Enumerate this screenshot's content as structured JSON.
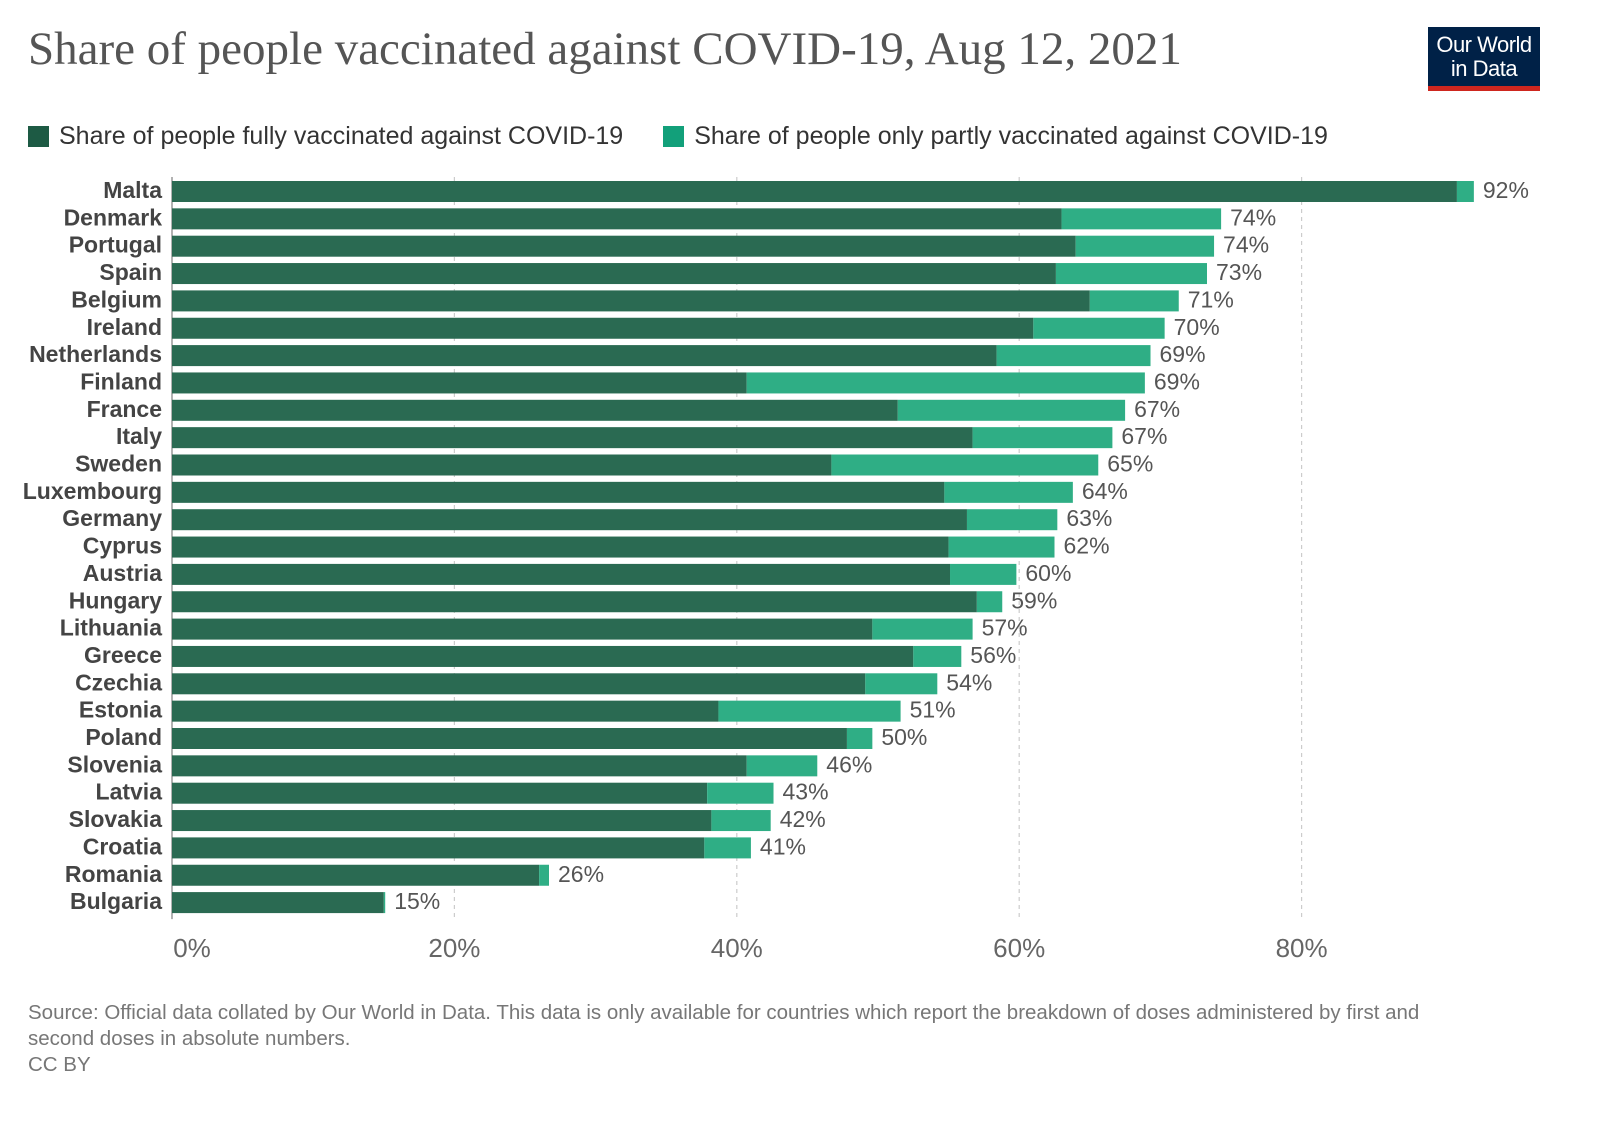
{
  "title": "Share of people vaccinated against COVID-19, Aug 12, 2021",
  "logo": {
    "line1": "Our World",
    "line2": "in Data"
  },
  "colors": {
    "fully": "#2a6a52",
    "partly": "#2fae85",
    "grid": "#cccccc",
    "label": "#444444",
    "value": "#555555",
    "tick": "#666666"
  },
  "chart_data": {
    "type": "bar",
    "orientation": "horizontal",
    "stacked": true,
    "title": "Share of people vaccinated against COVID-19, Aug 12, 2021",
    "categories": [
      "Malta",
      "Denmark",
      "Portugal",
      "Spain",
      "Belgium",
      "Ireland",
      "Netherlands",
      "Finland",
      "France",
      "Italy",
      "Sweden",
      "Luxembourg",
      "Germany",
      "Cyprus",
      "Austria",
      "Hungary",
      "Lithuania",
      "Greece",
      "Czechia",
      "Estonia",
      "Poland",
      "Slovenia",
      "Latvia",
      "Slovakia",
      "Croatia",
      "Romania",
      "Bulgaria"
    ],
    "series": [
      {
        "name": "Share of people fully vaccinated against COVID-19",
        "values": [
          91,
          63,
          64,
          62.6,
          65,
          61,
          58.4,
          40.7,
          51.4,
          56.7,
          46.7,
          54.7,
          56.3,
          55,
          55.1,
          57,
          49.6,
          52.5,
          49.1,
          38.7,
          47.8,
          40.7,
          37.9,
          38.2,
          37.7,
          26,
          15
        ]
      },
      {
        "name": "Share of people only partly vaccinated against COVID-19",
        "values": [
          1.2,
          11.3,
          9.8,
          10.7,
          6.3,
          9.3,
          10.9,
          28.2,
          16.1,
          9.9,
          18.9,
          9.1,
          6.4,
          7.5,
          4.7,
          1.8,
          7.1,
          3.4,
          5.1,
          12.9,
          1.8,
          5,
          4.7,
          4.2,
          3.3,
          0.7,
          0.1
        ]
      }
    ],
    "value_labels": [
      "92%",
      "74%",
      "74%",
      "73%",
      "71%",
      "70%",
      "69%",
      "69%",
      "67%",
      "67%",
      "65%",
      "64%",
      "63%",
      "62%",
      "60%",
      "59%",
      "57%",
      "56%",
      "54%",
      "51%",
      "50%",
      "46%",
      "43%",
      "42%",
      "41%",
      "26%",
      "15%"
    ],
    "x_ticks": [
      0,
      20,
      40,
      60,
      80
    ],
    "x_tick_labels": [
      "0%",
      "20%",
      "40%",
      "60%",
      "80%"
    ],
    "xlim": [
      0,
      100
    ],
    "grid": "vertical-dashed",
    "legend_position": "top"
  },
  "footer": {
    "source": "Source: Official data collated by Our World in Data. This data is only available for countries which report the breakdown of doses administered by first and second doses in absolute numbers.",
    "license": "CC BY"
  }
}
